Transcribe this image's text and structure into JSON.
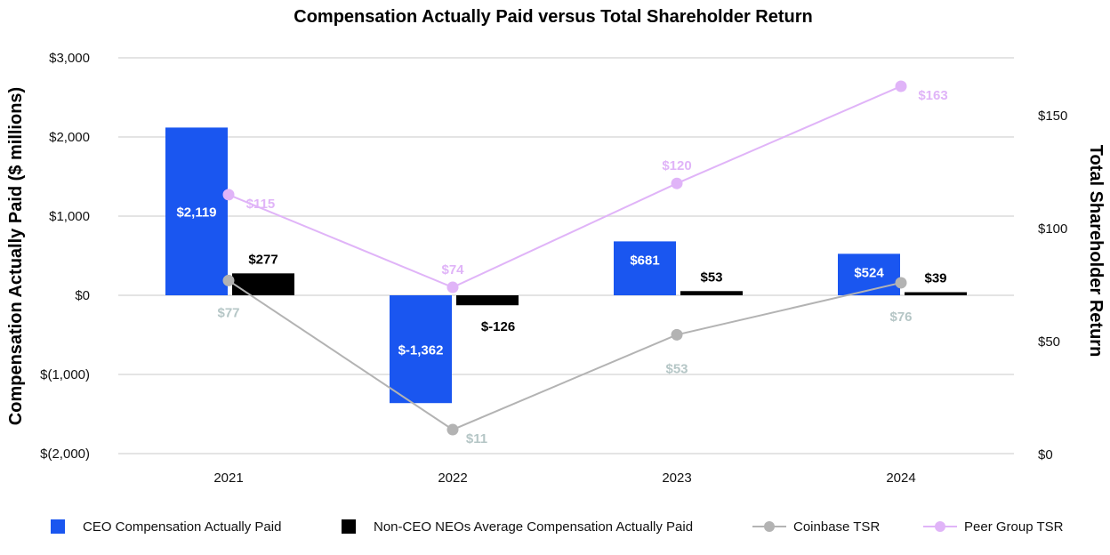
{
  "chart_data": {
    "type": "bar",
    "title": "Compensation Actually Paid versus Total Shareholder Return",
    "ylabel": "Compensation Actually Paid ($ millions)",
    "y2label": "Total Shareholder Return",
    "categories": [
      "2021",
      "2022",
      "2023",
      "2024"
    ],
    "ylim": [
      -2000,
      3000
    ],
    "y2lim": [
      0,
      175
    ],
    "yticks": [
      3000,
      2000,
      1000,
      0,
      -1000,
      -2000
    ],
    "ytick_labels": [
      "$3,000",
      "$2,000",
      "$1,000",
      "$0",
      "$(1,000)",
      "$(2,000)"
    ],
    "y2ticks": [
      150,
      100,
      50,
      0
    ],
    "y2tick_labels": [
      "$150",
      "$100",
      "$50",
      "$0"
    ],
    "grid": true,
    "legend_position": "bottom",
    "series": [
      {
        "name": "CEO Compensation Actually Paid",
        "kind": "bar",
        "axis": "left",
        "color": "#1a56f0",
        "values": [
          2119,
          -1362,
          681,
          524
        ],
        "labels": [
          "$2,119",
          "$-1,362",
          "$681",
          "$524"
        ],
        "label_color": "#ffffff"
      },
      {
        "name": "Non-CEO NEOs Average Compensation Actually Paid",
        "kind": "bar",
        "axis": "left",
        "color": "#000000",
        "values": [
          277,
          -126,
          53,
          39
        ],
        "labels": [
          "$277",
          "$-126",
          "$53",
          "$39"
        ],
        "label_color": "#000000"
      },
      {
        "name": "Coinbase TSR",
        "kind": "line",
        "axis": "right",
        "color": "#b3b3b3",
        "values": [
          77,
          11,
          53,
          76
        ],
        "labels": [
          "$77",
          "$11",
          "$53",
          "$76"
        ],
        "label_color": "#b5c6c6"
      },
      {
        "name": "Peer Group TSR",
        "kind": "line",
        "axis": "right",
        "color": "#e0b4f8",
        "values": [
          115,
          74,
          120,
          163
        ],
        "labels": [
          "$115",
          "$74",
          "$120",
          "$163"
        ],
        "label_color": "#e0b4f8"
      }
    ]
  }
}
